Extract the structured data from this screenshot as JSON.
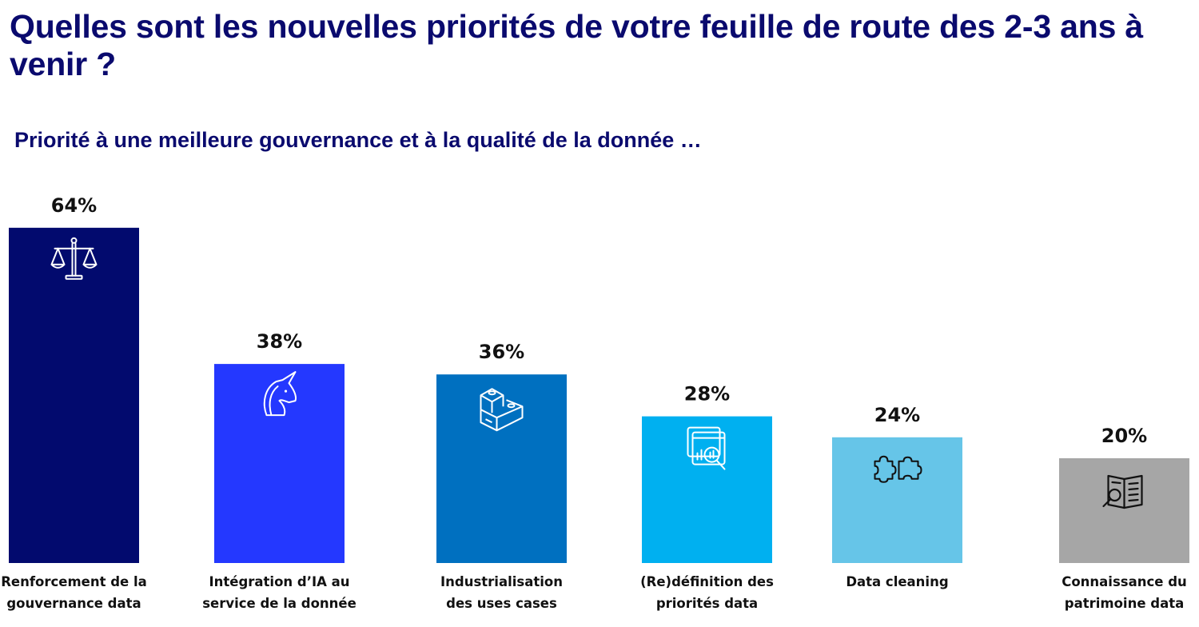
{
  "header": {
    "title": "Quelles sont les nouvelles priorités de votre feuille de route des 2-3 ans à venir ?",
    "subtitle": "Priorité à une meilleure gouvernance et à la qualité de la donnée …"
  },
  "chart_data": {
    "type": "bar",
    "title": "Quelles sont les nouvelles priorités de votre feuille de route des 2-3 ans à venir ?",
    "subtitle": "Priorité à une meilleure gouvernance et à la qualité de la donnée …",
    "xlabel": "",
    "ylabel": "",
    "ylim": [
      0,
      100
    ],
    "grid": false,
    "unit": "%",
    "categories": [
      [
        "Renforcement de la",
        "gouvernance data"
      ],
      [
        "Intégration d’IA au",
        "service de la donnée"
      ],
      [
        "Industrialisation",
        "des uses cases"
      ],
      [
        "(Re)définition des",
        "priorités data"
      ],
      [
        "Data cleaning"
      ],
      [
        "Connaissance du",
        "patrimoine data"
      ]
    ],
    "values": [
      64,
      38,
      36,
      28,
      24,
      20
    ],
    "data_labels": [
      "64%",
      "38%",
      "36%",
      "28%",
      "24%",
      "20%"
    ],
    "colors": [
      "#020a6e",
      "#2438ff",
      "#0070c0",
      "#00b0f0",
      "#66c5e8",
      "#a6a6a6"
    ],
    "icon_colors": [
      "#ffffff",
      "#ffffff",
      "#ffffff",
      "#ffffff",
      "#111111",
      "#111111"
    ],
    "icons": [
      "scales-of-justice-icon",
      "unicorn-icon",
      "building-blocks-icon",
      "data-analysis-magnifier-icon",
      "puzzle-pieces-icon",
      "book-search-icon"
    ]
  }
}
